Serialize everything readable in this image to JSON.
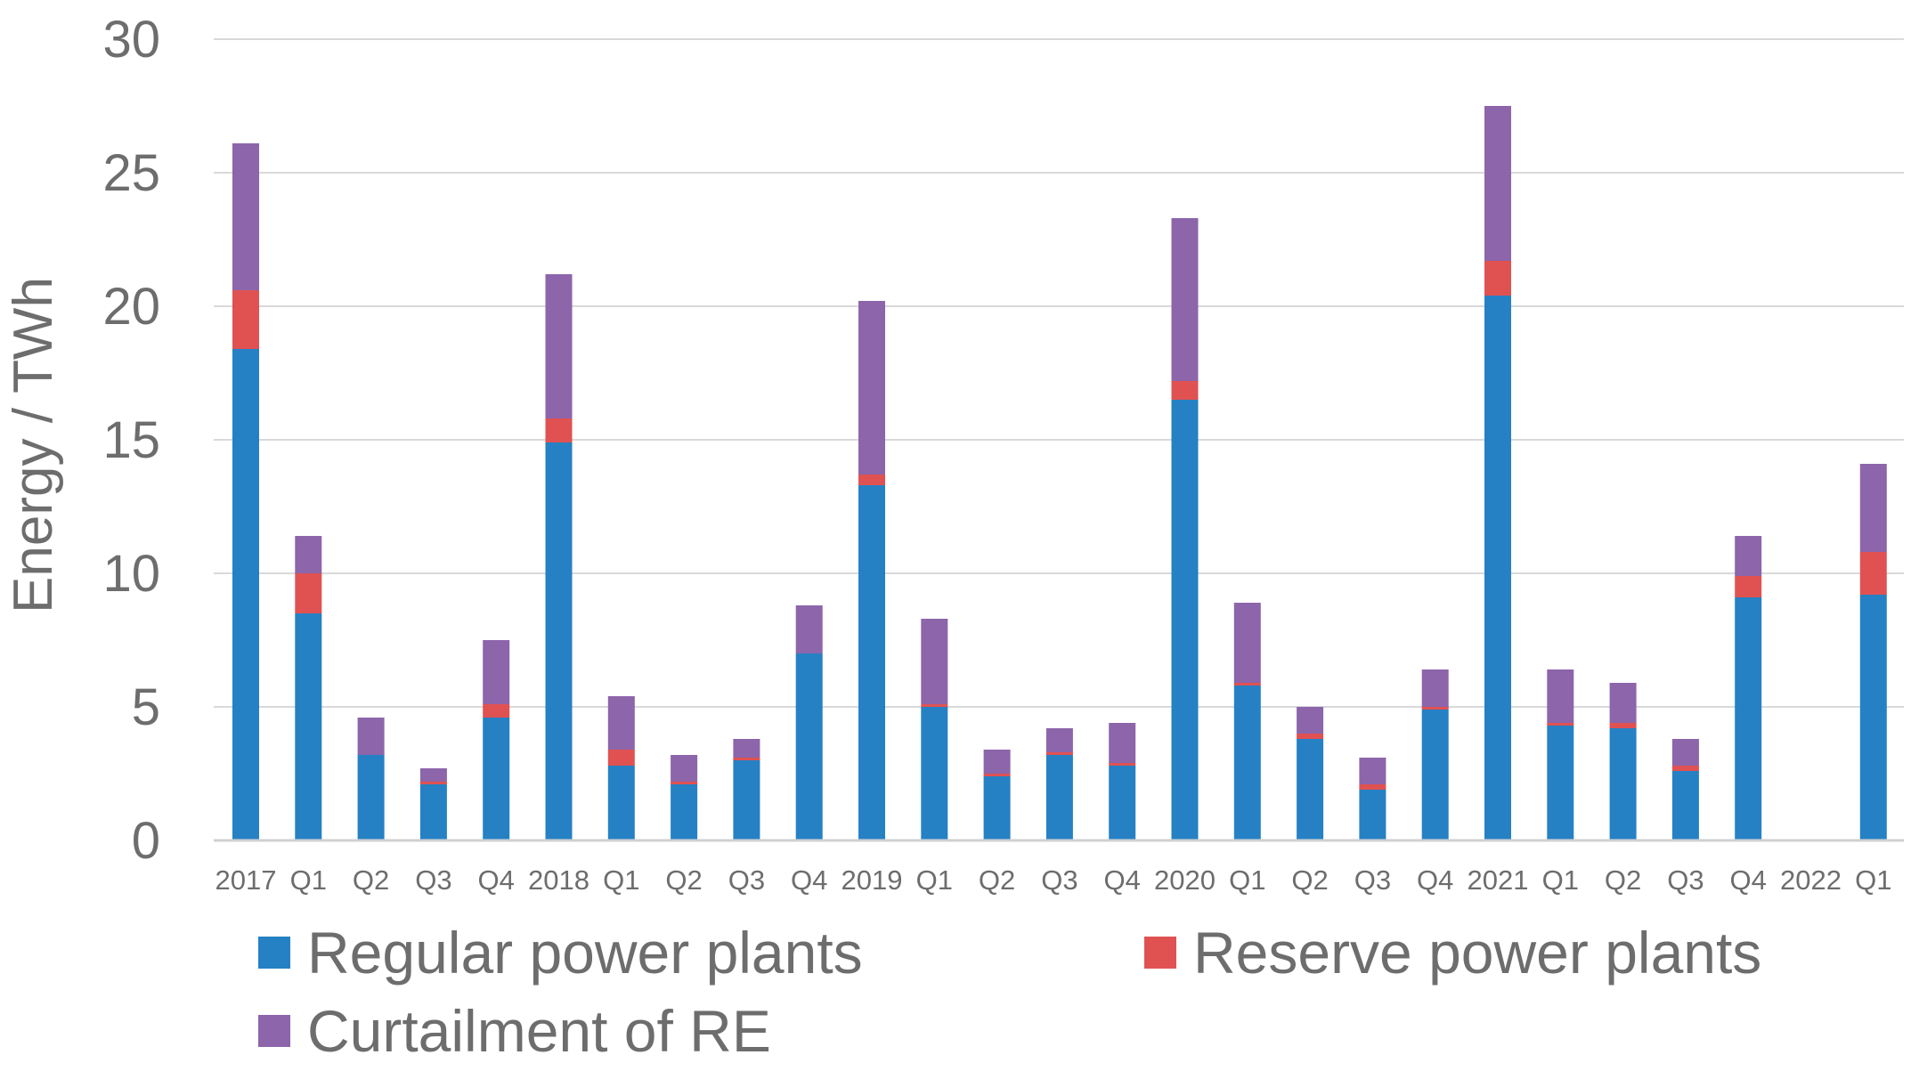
{
  "chart_data": {
    "type": "bar",
    "stacked": true,
    "title": "",
    "xlabel": "",
    "ylabel": "Energy / TWh",
    "ylim": [
      0,
      30
    ],
    "yticks": [
      0,
      5,
      10,
      15,
      20,
      25,
      30
    ],
    "grid": true,
    "categories": [
      "2017",
      "Q1",
      "Q2",
      "Q3",
      "Q4",
      "2018",
      "Q1",
      "Q2",
      "Q3",
      "Q4",
      "2019",
      "Q1",
      "Q2",
      "Q3",
      "Q4",
      "2020",
      "Q1",
      "Q2",
      "Q3",
      "Q4",
      "2021",
      "Q1",
      "Q2",
      "Q3",
      "Q4",
      "2022",
      "Q1"
    ],
    "series": [
      {
        "name": "Regular power plants",
        "color": "#2581c4",
        "values": [
          18.4,
          8.5,
          3.2,
          2.1,
          4.6,
          14.9,
          2.8,
          2.1,
          3.0,
          7.0,
          13.3,
          5.0,
          2.4,
          3.2,
          2.8,
          16.5,
          5.8,
          3.8,
          1.9,
          4.9,
          20.4,
          4.3,
          4.2,
          2.6,
          9.1,
          0,
          9.2
        ]
      },
      {
        "name": "Reserve power plants",
        "color": "#e05252",
        "values": [
          2.2,
          1.5,
          0,
          0.1,
          0.5,
          0.9,
          0.6,
          0.1,
          0.1,
          0,
          0.4,
          0.1,
          0.1,
          0.1,
          0.1,
          0.7,
          0.1,
          0.2,
          0.2,
          0.1,
          1.3,
          0.1,
          0.2,
          0.2,
          0.8,
          0,
          1.6
        ]
      },
      {
        "name": "Curtailment of RE",
        "color": "#8c65ab",
        "values": [
          5.5,
          1.4,
          1.4,
          0.5,
          2.4,
          5.4,
          2.0,
          1.0,
          0.7,
          1.8,
          6.5,
          3.2,
          0.9,
          0.9,
          1.5,
          6.1,
          3.0,
          1.0,
          1.0,
          1.4,
          5.8,
          2.0,
          1.5,
          1.0,
          1.5,
          0,
          3.3
        ]
      }
    ],
    "legend": [
      "Regular power plants",
      "Reserve power plants",
      "Curtailment of RE"
    ],
    "legend_position": "bottom"
  }
}
